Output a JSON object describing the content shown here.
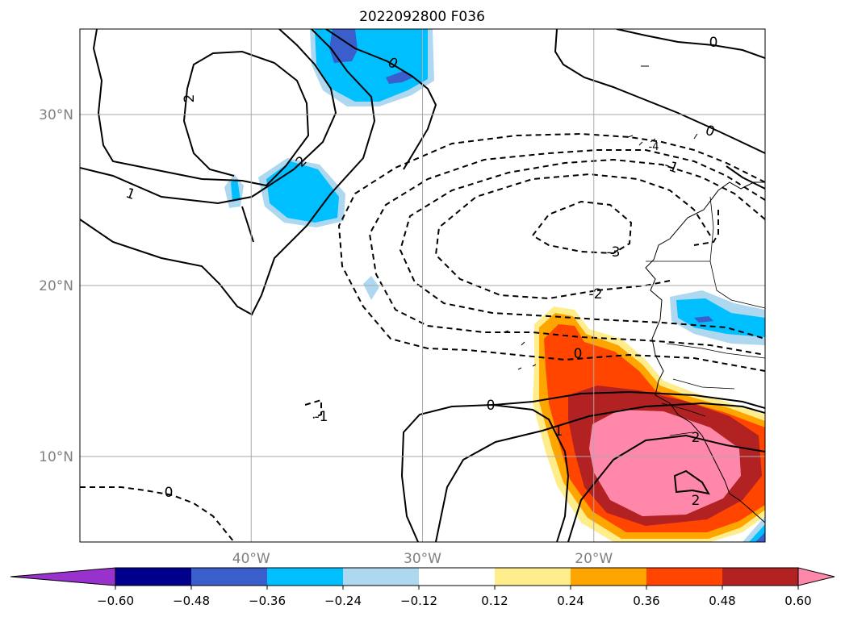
{
  "chart_data": {
    "type": "heatmap",
    "title": "2022092800 F036",
    "map": {
      "projection": "cylindrical",
      "lon_range": [
        -50,
        -10
      ],
      "lat_range": [
        5,
        35
      ],
      "grid": true,
      "lon_ticks": [
        -40,
        -30,
        -20
      ],
      "lon_tick_labels": [
        "40°W",
        "30°W",
        "20°W"
      ],
      "lat_ticks": [
        10,
        20,
        30
      ],
      "lat_tick_labels": [
        "10°N",
        "20°N",
        "30°N"
      ]
    },
    "colorbar": {
      "orientation": "horizontal",
      "extend": "both",
      "levels": [
        -0.6,
        -0.48,
        -0.36,
        -0.24,
        -0.12,
        0.12,
        0.24,
        0.36,
        0.48,
        0.6
      ],
      "tick_labels": [
        "−0.60",
        "−0.48",
        "−0.36",
        "−0.24",
        "−0.12",
        "0.12",
        "0.24",
        "0.36",
        "0.48",
        "0.60"
      ],
      "colors": [
        "#9932cc",
        "#00008b",
        "#3a5fcd",
        "#00bfff",
        "#add8f0",
        "#ffffff",
        "#ffec8b",
        "#ffa500",
        "#ff4500",
        "#b22222",
        "#ff88aa"
      ]
    },
    "filled_regions": [
      {
        "level_min": -0.36,
        "level_max": -0.24,
        "color": "#00bfff",
        "region": "north of 30°N near 35°W–27°W"
      },
      {
        "level_min": -0.48,
        "level_max": -0.36,
        "color": "#3a5fcd",
        "region": "near 34°N, 35°W"
      },
      {
        "level_min": -0.36,
        "level_max": -0.24,
        "color": "#00bfff",
        "region": "near 26°N, 37°W"
      },
      {
        "level_min": -0.36,
        "level_max": -0.24,
        "color": "#00bfff",
        "region": "near 18°N, 14°W"
      },
      {
        "level_min": 0.12,
        "level_max": 0.6,
        "color": "#ff4500",
        "region": "West Africa, 5°N–18°N, 23°W–10°W"
      },
      {
        "level_min": 0.6,
        "level_max": null,
        "color": "#ff88aa",
        "region": "near 10°N, 17°W"
      }
    ],
    "contours": {
      "labels": [
        "0",
        "2",
        "1",
        "-1",
        "-2",
        "-3",
        "-4"
      ],
      "positive_style": "solid",
      "negative_style": "dashed"
    }
  }
}
